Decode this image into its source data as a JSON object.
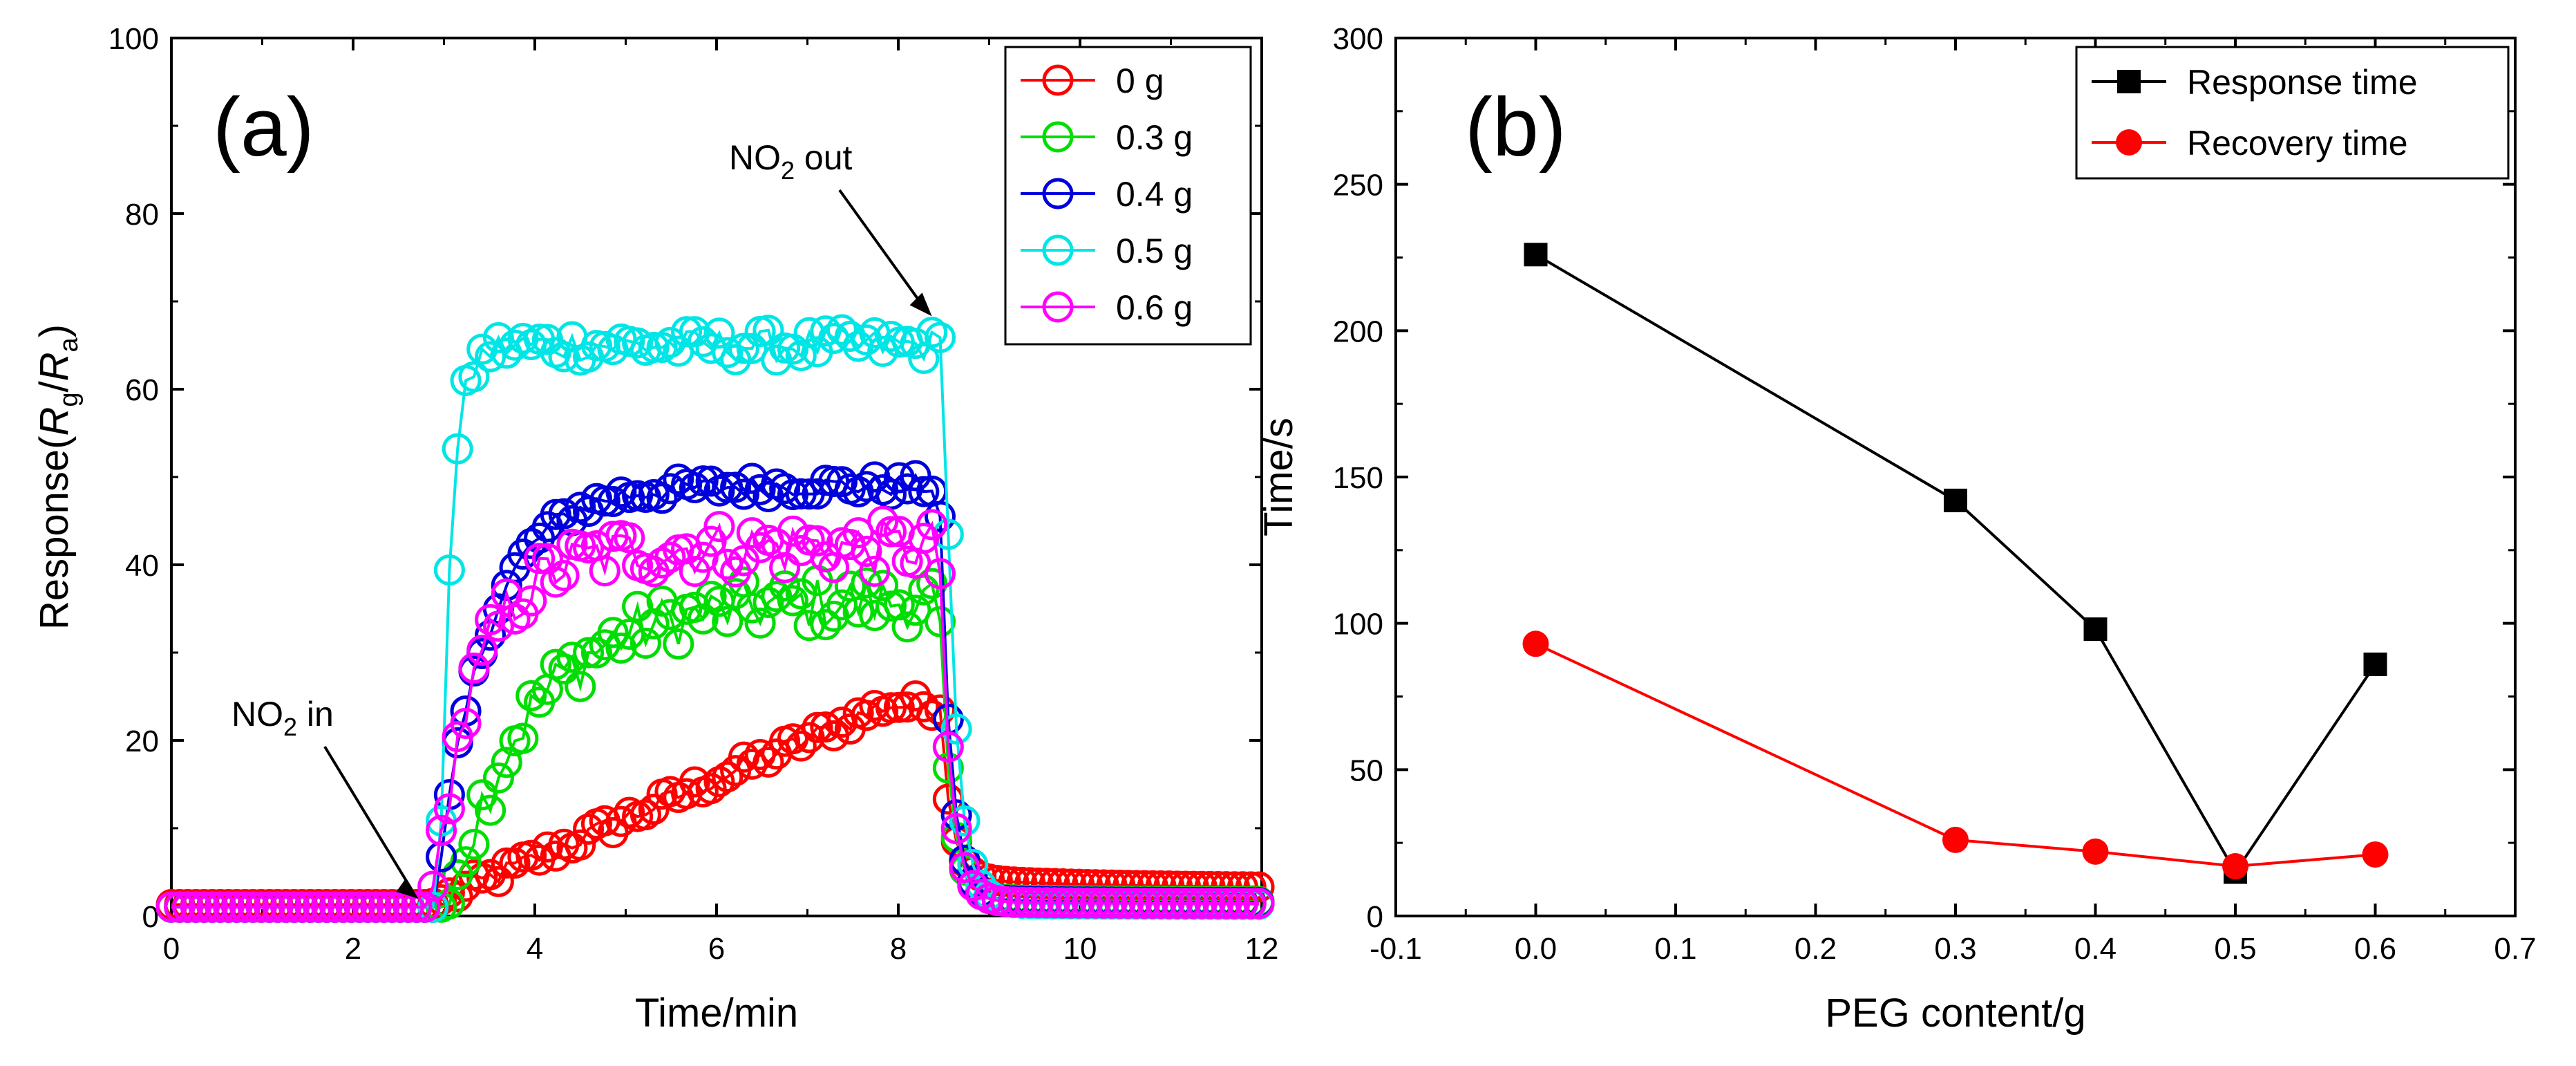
{
  "chart_data": [
    {
      "panel_label": "(a)",
      "type": "scatter",
      "xlabel": "Time/min",
      "ylabel_parts": [
        "Response(",
        "R",
        "g",
        "/",
        "R",
        "a",
        ")"
      ],
      "xlim": [
        0,
        12
      ],
      "ylim": [
        0,
        100
      ],
      "xticks": [
        0,
        2,
        4,
        6,
        8,
        10,
        12
      ],
      "yticks": [
        0,
        20,
        40,
        60,
        80,
        100
      ],
      "xtick_labels": [
        "0",
        "2",
        "4",
        "6",
        "8",
        "10",
        "12"
      ],
      "ytick_labels": [
        "0",
        "20",
        "40",
        "60",
        "80",
        "100"
      ],
      "legend_position": "top-right",
      "annotations": [
        {
          "name": "no2-in",
          "main": "NO",
          "sub": "2",
          "tail": " in",
          "at": [
            2.75,
            1.5
          ]
        },
        {
          "name": "no2-out",
          "main": "NO",
          "sub": "2",
          "tail": " out",
          "at": [
            8.4,
            68
          ]
        }
      ],
      "series": [
        {
          "name": "0 g",
          "color": "#ff0000",
          "baseline": 1.3,
          "response": 24,
          "on": 2.85,
          "off": 8.45,
          "tau_rise": 5.0,
          "rise_shape": "linear",
          "tail_level": 3.2,
          "noise": 1.2
        },
        {
          "name": "0.3 g",
          "color": "#00dd00",
          "baseline": 1.0,
          "response": 36,
          "on": 3.05,
          "off": 8.45,
          "tau_rise": 0.9,
          "rise_shape": "exp",
          "tail_level": 1.6,
          "noise": 3.0
        },
        {
          "name": "0.4 g",
          "color": "#0000dd",
          "baseline": 1.0,
          "response": 49,
          "on": 2.9,
          "off": 8.45,
          "tau_rise": 0.55,
          "rise_shape": "exp",
          "tail_level": 1.5,
          "noise": 1.2
        },
        {
          "name": "0.5 g",
          "color": "#00e5e5",
          "baseline": 1.0,
          "response": 65,
          "on": 2.95,
          "off": 8.5,
          "tau_rise": 0.12,
          "rise_shape": "exp",
          "tail_level": 1.3,
          "noise": 1.8
        },
        {
          "name": "0.6 g",
          "color": "#ff00ff",
          "baseline": 1.0,
          "response": 42,
          "on": 2.85,
          "off": 8.45,
          "tau_rise": 0.5,
          "rise_shape": "exp",
          "tail_level": 1.4,
          "noise": 3.0
        }
      ]
    },
    {
      "panel_label": "(b)",
      "type": "line",
      "xlabel": "PEG content/g",
      "ylabel": "Time/s",
      "xlim": [
        -0.1,
        0.7
      ],
      "ylim": [
        0,
        300
      ],
      "xticks": [
        -0.1,
        0,
        0.1,
        0.2,
        0.3,
        0.4,
        0.5,
        0.6,
        0.7
      ],
      "yticks": [
        0,
        50,
        100,
        150,
        200,
        250,
        300
      ],
      "xtick_labels": [
        "-0.1",
        "0.0",
        "0.1",
        "0.2",
        "0.3",
        "0.4",
        "0.5",
        "0.6",
        "0.7"
      ],
      "ytick_labels": [
        "0",
        "50",
        "100",
        "150",
        "200",
        "250",
        "300"
      ],
      "legend_position": "top-right",
      "x": [
        0.0,
        0.3,
        0.4,
        0.5,
        0.6
      ],
      "series": [
        {
          "name": "Response time",
          "marker": "square",
          "color": "#000000",
          "values": [
            226,
            142,
            98,
            15,
            86
          ]
        },
        {
          "name": "Recovery time",
          "marker": "circle",
          "color": "#ff0000",
          "values": [
            93,
            26,
            22,
            17,
            21
          ]
        }
      ]
    }
  ]
}
